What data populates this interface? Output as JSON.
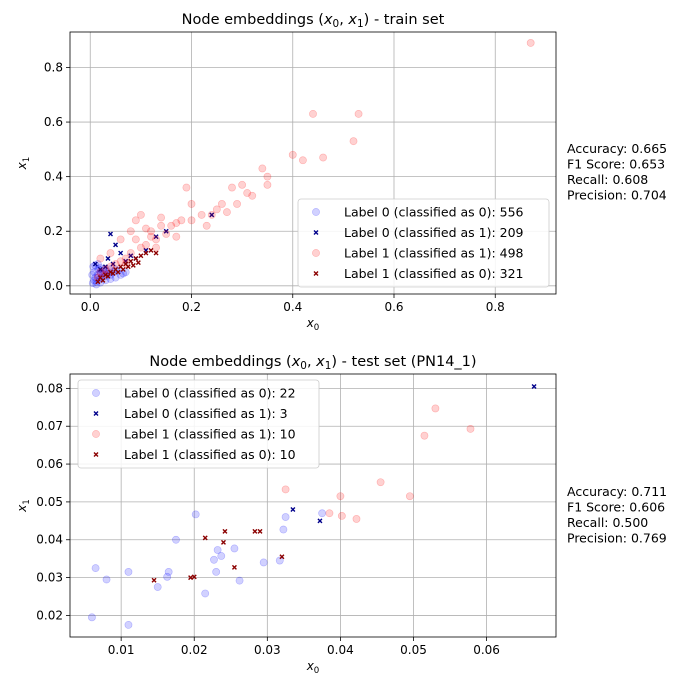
{
  "chart_data": [
    {
      "type": "scatter",
      "title": "Node embeddings (x₀, x₁) - train set",
      "title_parts": {
        "prefix": "Node embeddings (",
        "x0": "x",
        "x0_sub": "0",
        "comma": ", ",
        "x1": "x",
        "x1_sub": "1",
        "suffix": ") - train set"
      },
      "xlabel": "x₀",
      "ylabel": "x₁",
      "xlim": [
        -0.04,
        0.92
      ],
      "ylim": [
        -0.03,
        0.93
      ],
      "xticks": [
        0.0,
        0.2,
        0.4,
        0.6,
        0.8
      ],
      "xtick_labels": [
        "0.0",
        "0.2",
        "0.4",
        "0.6",
        "0.8"
      ],
      "yticks": [
        0.0,
        0.2,
        0.4,
        0.6,
        0.8
      ],
      "ytick_labels": [
        "0.0",
        "0.2",
        "0.4",
        "0.6",
        "0.8"
      ],
      "grid": true,
      "legend_position": "lower right",
      "metrics": [
        "Accuracy: 0.665",
        "F1 Score: 0.653",
        "Recall: 0.608",
        "Precision: 0.704"
      ],
      "series": [
        {
          "name": "Label 0 (classified as 0): 556",
          "marker": "circle",
          "color": "#0000ff",
          "points": [
            [
              0.005,
              0.01
            ],
            [
              0.008,
              0.02
            ],
            [
              0.01,
              0.03
            ],
            [
              0.012,
              0.015
            ],
            [
              0.015,
              0.04
            ],
            [
              0.018,
              0.025
            ],
            [
              0.02,
              0.05
            ],
            [
              0.022,
              0.03
            ],
            [
              0.025,
              0.06
            ],
            [
              0.03,
              0.035
            ],
            [
              0.035,
              0.045
            ],
            [
              0.04,
              0.04
            ],
            [
              0.045,
              0.05
            ],
            [
              0.05,
              0.06
            ],
            [
              0.055,
              0.055
            ],
            [
              0.006,
              0.07
            ],
            [
              0.01,
              0.075
            ],
            [
              0.015,
              0.08
            ],
            [
              0.02,
              0.065
            ],
            [
              0.028,
              0.05
            ],
            [
              0.032,
              0.055
            ],
            [
              0.038,
              0.06
            ],
            [
              0.012,
              0.005
            ],
            [
              0.02,
              0.012
            ],
            [
              0.03,
              0.02
            ],
            [
              0.04,
              0.025
            ],
            [
              0.05,
              0.03
            ],
            [
              0.06,
              0.04
            ],
            [
              0.065,
              0.045
            ],
            [
              0.07,
              0.05
            ],
            [
              0.004,
              0.04
            ],
            [
              0.008,
              0.05
            ],
            [
              0.016,
              0.06
            ],
            [
              0.024,
              0.045
            ]
          ]
        },
        {
          "name": "Label 0 (classified as 1): 209",
          "marker": "x",
          "color": "#00008b",
          "points": [
            [
              0.01,
              0.08
            ],
            [
              0.02,
              0.06
            ],
            [
              0.03,
              0.07
            ],
            [
              0.04,
              0.19
            ],
            [
              0.05,
              0.15
            ],
            [
              0.06,
              0.12
            ],
            [
              0.07,
              0.09
            ],
            [
              0.08,
              0.11
            ],
            [
              0.09,
              0.1
            ],
            [
              0.11,
              0.13
            ],
            [
              0.13,
              0.18
            ],
            [
              0.15,
              0.2
            ],
            [
              0.24,
              0.26
            ],
            [
              0.035,
              0.1
            ],
            [
              0.045,
              0.08
            ]
          ]
        },
        {
          "name": "Label 1 (classified as 1): 498",
          "marker": "circle",
          "color": "#ff0000",
          "points": [
            [
              0.87,
              0.89
            ],
            [
              0.44,
              0.63
            ],
            [
              0.53,
              0.63
            ],
            [
              0.52,
              0.53
            ],
            [
              0.4,
              0.48
            ],
            [
              0.46,
              0.47
            ],
            [
              0.42,
              0.46
            ],
            [
              0.34,
              0.43
            ],
            [
              0.35,
              0.4
            ],
            [
              0.35,
              0.37
            ],
            [
              0.3,
              0.37
            ],
            [
              0.32,
              0.33
            ],
            [
              0.29,
              0.3
            ],
            [
              0.28,
              0.36
            ],
            [
              0.26,
              0.3
            ],
            [
              0.27,
              0.27
            ],
            [
              0.24,
              0.26
            ],
            [
              0.22,
              0.26
            ],
            [
              0.19,
              0.36
            ],
            [
              0.2,
              0.3
            ],
            [
              0.18,
              0.24
            ],
            [
              0.17,
              0.23
            ],
            [
              0.16,
              0.22
            ],
            [
              0.15,
              0.19
            ],
            [
              0.14,
              0.22
            ],
            [
              0.13,
              0.17
            ],
            [
              0.12,
              0.18
            ],
            [
              0.11,
              0.15
            ],
            [
              0.1,
              0.14
            ],
            [
              0.09,
              0.17
            ],
            [
              0.08,
              0.12
            ],
            [
              0.07,
              0.1
            ],
            [
              0.06,
              0.09
            ],
            [
              0.05,
              0.08
            ],
            [
              0.04,
              0.07
            ],
            [
              0.03,
              0.06
            ],
            [
              0.02,
              0.05
            ],
            [
              0.015,
              0.03
            ],
            [
              0.1,
              0.26
            ],
            [
              0.09,
              0.24
            ],
            [
              0.12,
              0.2
            ],
            [
              0.2,
              0.24
            ],
            [
              0.23,
              0.22
            ],
            [
              0.25,
              0.28
            ],
            [
              0.31,
              0.34
            ],
            [
              0.06,
              0.17
            ],
            [
              0.04,
              0.12
            ],
            [
              0.02,
              0.1
            ],
            [
              0.14,
              0.25
            ],
            [
              0.17,
              0.18
            ],
            [
              0.08,
              0.2
            ],
            [
              0.11,
              0.21
            ],
            [
              0.03,
              0.04
            ],
            [
              0.07,
              0.08
            ],
            [
              0.13,
              0.14
            ]
          ]
        },
        {
          "name": "Label 1 (classified as 0): 321",
          "marker": "x",
          "color": "#8b0000",
          "points": [
            [
              0.02,
              0.03
            ],
            [
              0.03,
              0.04
            ],
            [
              0.04,
              0.05
            ],
            [
              0.05,
              0.06
            ],
            [
              0.06,
              0.07
            ],
            [
              0.07,
              0.08
            ],
            [
              0.08,
              0.09
            ],
            [
              0.09,
              0.1
            ],
            [
              0.1,
              0.11
            ],
            [
              0.11,
              0.12
            ],
            [
              0.035,
              0.035
            ],
            [
              0.045,
              0.045
            ],
            [
              0.055,
              0.05
            ],
            [
              0.065,
              0.06
            ],
            [
              0.075,
              0.07
            ],
            [
              0.025,
              0.02
            ],
            [
              0.015,
              0.015
            ],
            [
              0.12,
              0.13
            ],
            [
              0.13,
              0.12
            ],
            [
              0.085,
              0.075
            ],
            [
              0.095,
              0.085
            ]
          ]
        }
      ]
    },
    {
      "type": "scatter",
      "title": "Node embeddings (x₀, x₁) - test set (PN14_1)",
      "title_parts": {
        "prefix": "Node embeddings (",
        "x0": "x",
        "x0_sub": "0",
        "comma": ", ",
        "x1": "x",
        "x1_sub": "1",
        "suffix": ") - test set (PN14_1)"
      },
      "xlabel": "x₀",
      "ylabel": "x₁",
      "xlim": [
        0.003,
        0.0695
      ],
      "ylim": [
        0.0143,
        0.0838
      ],
      "xticks": [
        0.01,
        0.02,
        0.03,
        0.04,
        0.05,
        0.06
      ],
      "xtick_labels": [
        "0.01",
        "0.02",
        "0.03",
        "0.04",
        "0.05",
        "0.06"
      ],
      "yticks": [
        0.02,
        0.03,
        0.04,
        0.05,
        0.06,
        0.07,
        0.08
      ],
      "ytick_labels": [
        "0.02",
        "0.03",
        "0.04",
        "0.05",
        "0.06",
        "0.07",
        "0.08"
      ],
      "grid": true,
      "legend_position": "upper left",
      "metrics": [
        "Accuracy: 0.711",
        "F1 Score: 0.606",
        "Recall: 0.500",
        "Precision: 0.769"
      ],
      "series": [
        {
          "name": "Label 0 (classified as 0): 22",
          "marker": "circle",
          "color": "#0000ff",
          "points": [
            [
              0.006,
              0.0195
            ],
            [
              0.0065,
              0.0325
            ],
            [
              0.008,
              0.0295
            ],
            [
              0.011,
              0.0175
            ],
            [
              0.011,
              0.0315
            ],
            [
              0.015,
              0.0275
            ],
            [
              0.0163,
              0.0302
            ],
            [
              0.0165,
              0.0315
            ],
            [
              0.0175,
              0.04
            ],
            [
              0.0202,
              0.0467
            ],
            [
              0.0215,
              0.0258
            ],
            [
              0.0227,
              0.0347
            ],
            [
              0.023,
              0.0315
            ],
            [
              0.0232,
              0.0373
            ],
            [
              0.0237,
              0.0357
            ],
            [
              0.0255,
              0.0377
            ],
            [
              0.0262,
              0.0292
            ],
            [
              0.0295,
              0.034
            ],
            [
              0.0317,
              0.0345
            ],
            [
              0.0322,
              0.0427
            ],
            [
              0.0325,
              0.046
            ],
            [
              0.0375,
              0.047
            ]
          ]
        },
        {
          "name": "Label 0 (classified as 1): 3",
          "marker": "x",
          "color": "#00008b",
          "points": [
            [
              0.0665,
              0.0805
            ],
            [
              0.0335,
              0.048
            ],
            [
              0.0372,
              0.045
            ]
          ]
        },
        {
          "name": "Label 1 (classified as 1): 10",
          "marker": "circle",
          "color": "#ff0000",
          "points": [
            [
              0.0325,
              0.0533
            ],
            [
              0.0385,
              0.047
            ],
            [
              0.04,
              0.0515
            ],
            [
              0.0402,
              0.0463
            ],
            [
              0.0422,
              0.0455
            ],
            [
              0.0455,
              0.0552
            ],
            [
              0.0495,
              0.0515
            ],
            [
              0.0515,
              0.0675
            ],
            [
              0.053,
              0.0747
            ],
            [
              0.0578,
              0.0693
            ]
          ]
        },
        {
          "name": "Label 1 (classified as 0): 10",
          "marker": "x",
          "color": "#8b0000",
          "points": [
            [
              0.0145,
              0.0293
            ],
            [
              0.0195,
              0.03
            ],
            [
              0.02,
              0.0302
            ],
            [
              0.0215,
              0.0405
            ],
            [
              0.024,
              0.0393
            ],
            [
              0.0242,
              0.0422
            ],
            [
              0.0255,
              0.0327
            ],
            [
              0.0283,
              0.0422
            ],
            [
              0.029,
              0.0422
            ],
            [
              0.032,
              0.0355
            ]
          ]
        }
      ]
    }
  ]
}
